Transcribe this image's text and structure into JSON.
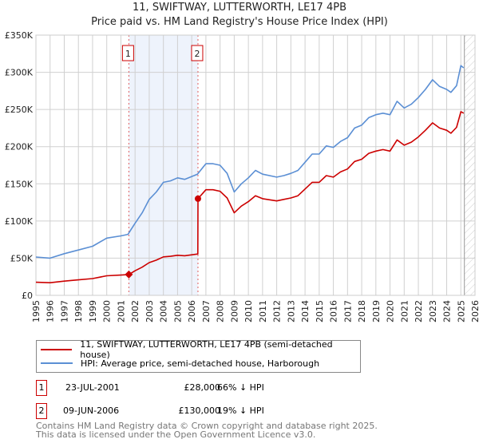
{
  "title": "11, SWIFTWAY, LUTTERWORTH, LE17 4PB",
  "subtitle": "Price paid vs. HM Land Registry's House Price Index (HPI)",
  "chart_data": {
    "type": "line",
    "title": "11, SWIFTWAY, LUTTERWORTH, LE17 4PB",
    "subtitle": "Price paid vs. HM Land Registry's House Price Index (HPI)",
    "xlim": [
      1995,
      2026
    ],
    "ylim": [
      0,
      350000
    ],
    "y_ticks": [
      0,
      50000,
      100000,
      150000,
      200000,
      250000,
      300000,
      350000
    ],
    "y_tick_labels": [
      "£0",
      "£50K",
      "£100K",
      "£150K",
      "£200K",
      "£250K",
      "£300K",
      "£350K"
    ],
    "x_tick_labels": [
      "1995",
      "1996",
      "1997",
      "1998",
      "1999",
      "2000",
      "2001",
      "2002",
      "2003",
      "2004",
      "2005",
      "2006",
      "2007",
      "2008",
      "2009",
      "2010",
      "2011",
      "2012",
      "2013",
      "2014",
      "2015",
      "2016",
      "2017",
      "2018",
      "2019",
      "2020",
      "2021",
      "2022",
      "2023",
      "2024",
      "2025",
      "2026"
    ],
    "grid": true,
    "data_end": 2025.25,
    "shaded_period": [
      2001.56,
      2006.44
    ],
    "series": [
      {
        "name": "11, SWIFTWAY, LUTTERWORTH, LE17 4PB (semi-detached house)",
        "color": "#cc0000",
        "x": [
          1995,
          1996,
          1997,
          1998,
          1999,
          2000,
          2001,
          2001.56,
          2002,
          2002.5,
          2003,
          2003.5,
          2004,
          2004.5,
          2005,
          2005.5,
          2006.43,
          2006.44,
          2007,
          2007.5,
          2008,
          2008.5,
          2009,
          2009.5,
          2010,
          2010.5,
          2011,
          2012,
          2012.5,
          2013,
          2013.5,
          2014,
          2014.5,
          2015,
          2015.5,
          2016,
          2016.5,
          2017,
          2017.5,
          2018,
          2018.5,
          2019,
          2019.5,
          2020,
          2020.5,
          2021,
          2021.5,
          2022,
          2022.5,
          2023,
          2023.5,
          2024,
          2024.3,
          2024.7,
          2025,
          2025.2
        ],
        "y": [
          17600,
          17000,
          19100,
          20800,
          22500,
          26300,
          27300,
          28000,
          33100,
          37900,
          44000,
          47400,
          51800,
          52500,
          53900,
          53200,
          55600,
          130000,
          142000,
          142000,
          140000,
          131000,
          111000,
          120000,
          126000,
          134000,
          130000,
          127000,
          129000,
          131000,
          134000,
          143000,
          152000,
          152000,
          161000,
          159000,
          166000,
          170000,
          180000,
          183000,
          191000,
          194000,
          196000,
          194000,
          209000,
          202000,
          206000,
          213000,
          222000,
          232000,
          225000,
          222000,
          218000,
          226000,
          247000,
          245000
        ]
      },
      {
        "name": "HPI: Average price, semi-detached house, Harborough",
        "color": "#5b8fd4",
        "x": [
          1995,
          1996,
          1997,
          1998,
          1999,
          2000,
          2001,
          2001.5,
          2002,
          2002.5,
          2003,
          2003.5,
          2004,
          2004.5,
          2005,
          2005.5,
          2006.4,
          2007,
          2007.5,
          2008,
          2008.5,
          2009,
          2009.5,
          2010,
          2010.5,
          2011,
          2012,
          2012.5,
          2013,
          2013.5,
          2014,
          2014.5,
          2015,
          2015.5,
          2016,
          2016.5,
          2017,
          2017.5,
          2018,
          2018.5,
          2019,
          2019.5,
          2020,
          2020.5,
          2021,
          2021.5,
          2022,
          2022.5,
          2023,
          2023.5,
          2024,
          2024.3,
          2024.7,
          2025,
          2025.2
        ],
        "y": [
          51500,
          50000,
          56000,
          61000,
          66000,
          77000,
          80000,
          82000,
          97000,
          111000,
          129000,
          139000,
          152000,
          154000,
          158000,
          156000,
          163000,
          177000,
          177000,
          175000,
          164000,
          139000,
          150000,
          158000,
          168000,
          163000,
          159000,
          161000,
          164000,
          168000,
          179000,
          190000,
          190000,
          201000,
          199000,
          207000,
          212000,
          225000,
          229000,
          239000,
          243000,
          245000,
          243000,
          261000,
          252000,
          257000,
          266000,
          277000,
          290000,
          281000,
          277000,
          273000,
          282000,
          309000,
          306000
        ]
      }
    ],
    "sales": [
      {
        "label": "1",
        "x": 2001.56,
        "price": 28000,
        "marker": "diamond"
      },
      {
        "label": "2",
        "x": 2006.44,
        "price": 130000,
        "marker": "circle"
      }
    ]
  },
  "legend": [
    {
      "label": "11, SWIFTWAY, LUTTERWORTH, LE17 4PB (semi-detached house)",
      "color": "#cc0000"
    },
    {
      "label": "HPI: Average price, semi-detached house, Harborough",
      "color": "#5b8fd4"
    }
  ],
  "transactions": [
    {
      "num": "1",
      "date": "23-JUL-2001",
      "price": "£28,000",
      "delta": "66% ↓ HPI"
    },
    {
      "num": "2",
      "date": "09-JUN-2006",
      "price": "£130,000",
      "delta": "19% ↓ HPI"
    }
  ],
  "footer": {
    "line1": "Contains HM Land Registry data © Crown copyright and database right 2025.",
    "line2": "This data is licensed under the Open Government Licence v3.0."
  }
}
